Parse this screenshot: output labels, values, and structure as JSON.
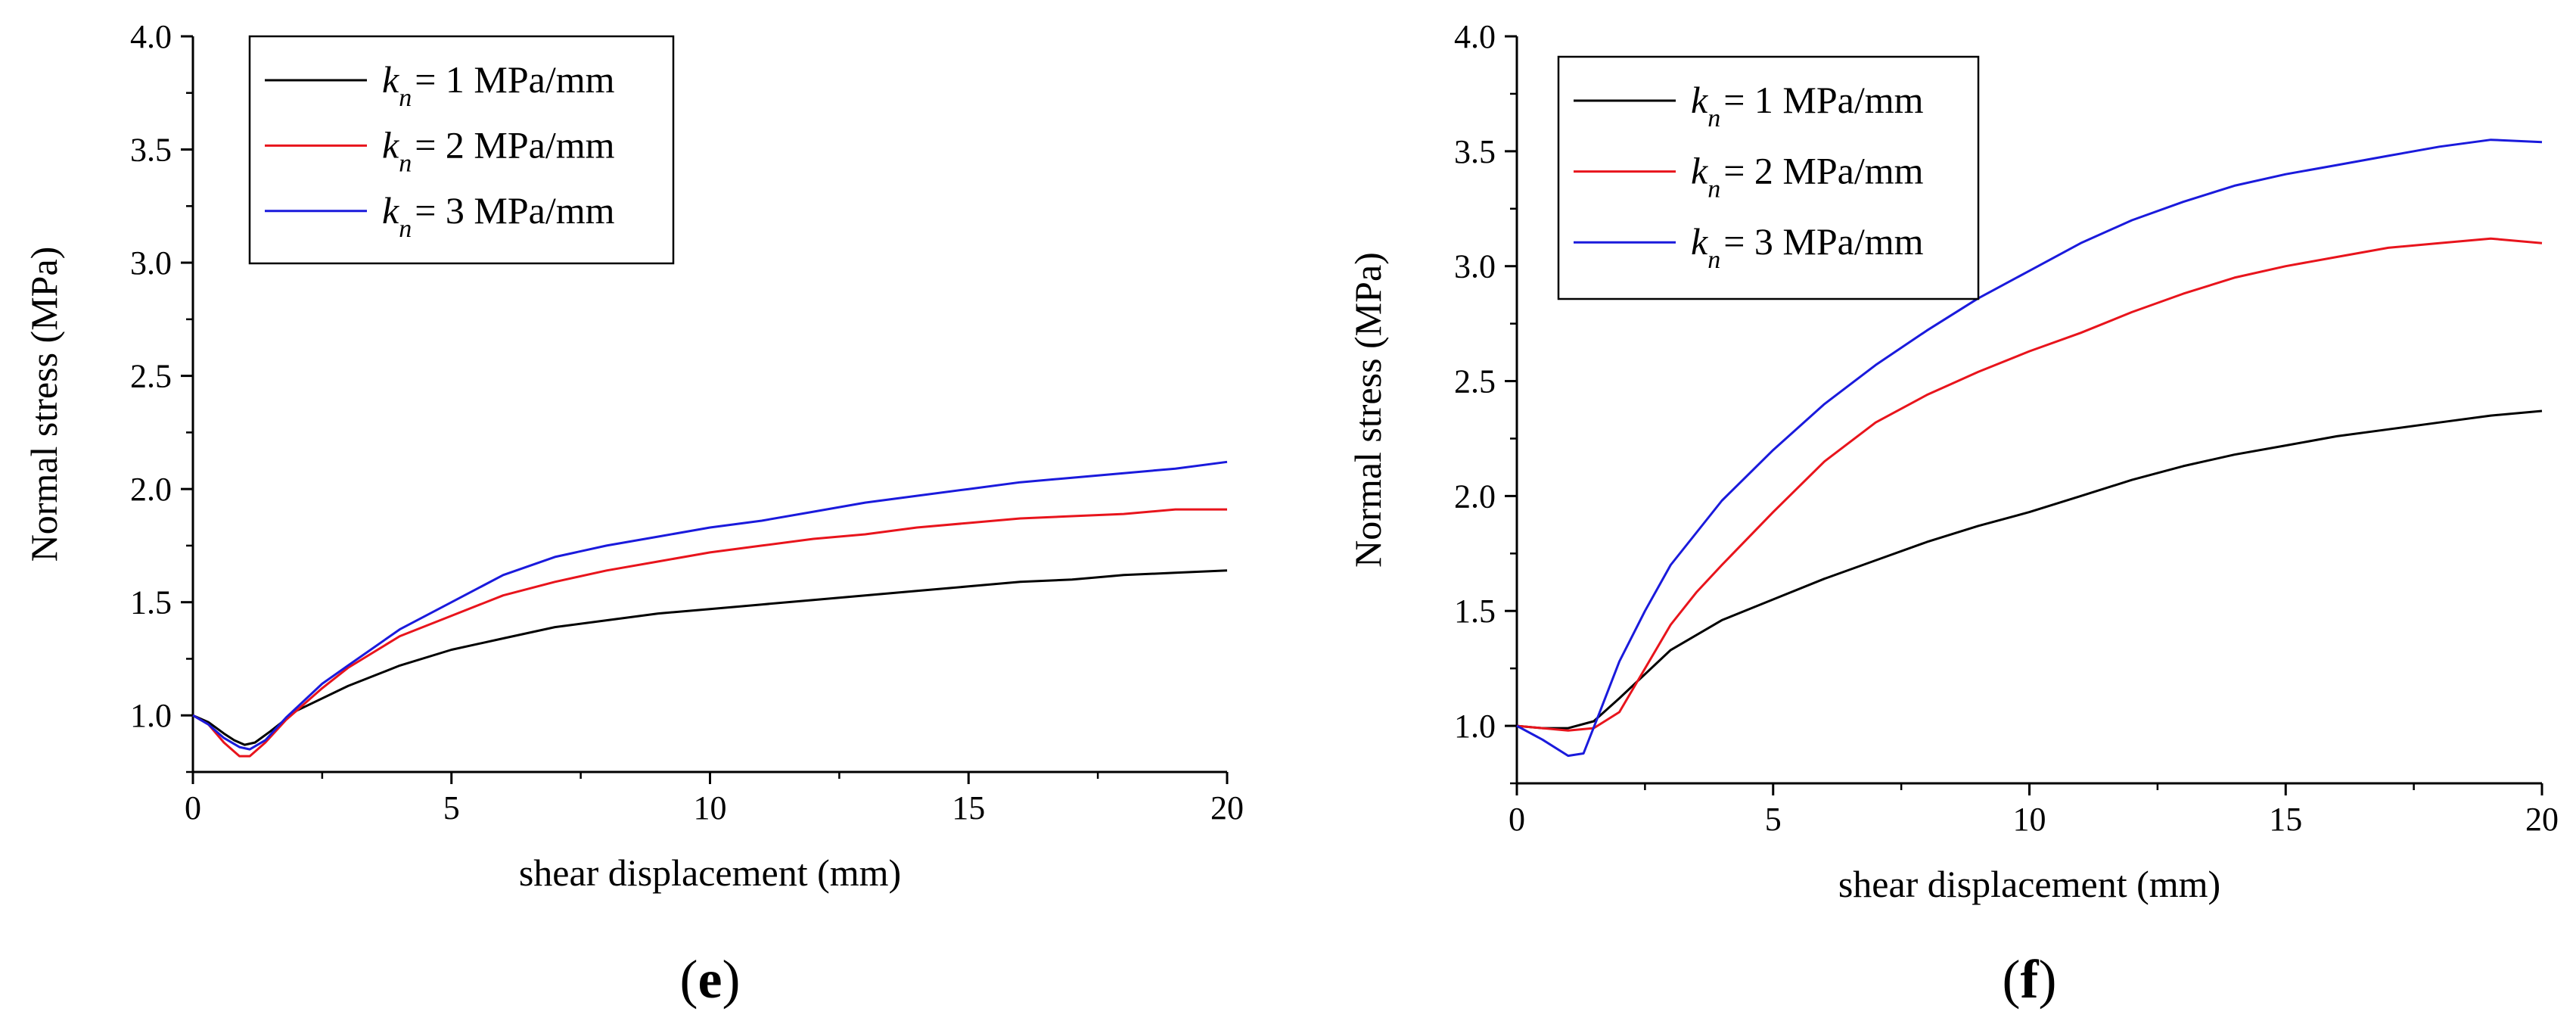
{
  "chart_data": [
    {
      "type": "line",
      "panel_label": "e",
      "xlabel": "shear displacement (mm)",
      "ylabel": "Normal stress (MPa)",
      "xlim": [
        0,
        20
      ],
      "ylim": [
        0.75,
        4.0
      ],
      "xticks": [
        0,
        5,
        10,
        15,
        20
      ],
      "yticks": [
        1.0,
        1.5,
        2.0,
        2.5,
        3.0,
        3.5,
        4.0
      ],
      "legend_position": "top-left",
      "series": [
        {
          "name": "k_n = 1 MPa/mm",
          "legend_k": "k",
          "legend_sub": "n",
          "legend_rest": "= 1 MPa/mm",
          "color": "#000000",
          "points": [
            [
              0,
              1.0
            ],
            [
              0.3,
              0.97
            ],
            [
              0.6,
              0.92
            ],
            [
              0.8,
              0.89
            ],
            [
              1.0,
              0.87
            ],
            [
              1.2,
              0.88
            ],
            [
              1.5,
              0.93
            ],
            [
              2,
              1.02
            ],
            [
              3,
              1.13
            ],
            [
              4,
              1.22
            ],
            [
              5,
              1.29
            ],
            [
              6,
              1.34
            ],
            [
              7,
              1.39
            ],
            [
              8,
              1.42
            ],
            [
              9,
              1.45
            ],
            [
              10,
              1.47
            ],
            [
              11,
              1.49
            ],
            [
              12,
              1.51
            ],
            [
              13,
              1.53
            ],
            [
              14,
              1.55
            ],
            [
              15,
              1.57
            ],
            [
              16,
              1.59
            ],
            [
              17,
              1.6
            ],
            [
              18,
              1.62
            ],
            [
              19,
              1.63
            ],
            [
              20,
              1.64
            ]
          ]
        },
        {
          "name": "k_n = 2 MPa/mm",
          "legend_k": "k",
          "legend_sub": "n",
          "legend_rest": "= 2 MPa/mm",
          "color": "#e8141c",
          "points": [
            [
              0,
              1.0
            ],
            [
              0.3,
              0.96
            ],
            [
              0.6,
              0.88
            ],
            [
              0.9,
              0.82
            ],
            [
              1.1,
              0.82
            ],
            [
              1.4,
              0.88
            ],
            [
              1.8,
              0.98
            ],
            [
              2.5,
              1.12
            ],
            [
              3,
              1.21
            ],
            [
              4,
              1.35
            ],
            [
              5,
              1.44
            ],
            [
              6,
              1.53
            ],
            [
              7,
              1.59
            ],
            [
              8,
              1.64
            ],
            [
              9,
              1.68
            ],
            [
              10,
              1.72
            ],
            [
              11,
              1.75
            ],
            [
              12,
              1.78
            ],
            [
              13,
              1.8
            ],
            [
              14,
              1.83
            ],
            [
              15,
              1.85
            ],
            [
              16,
              1.87
            ],
            [
              17,
              1.88
            ],
            [
              18,
              1.89
            ],
            [
              19,
              1.91
            ],
            [
              20,
              1.91
            ]
          ]
        },
        {
          "name": "k_n = 3 MPa/mm",
          "legend_k": "k",
          "legend_sub": "n",
          "legend_rest": "= 3 MPa/mm",
          "color": "#1a1adc",
          "points": [
            [
              0,
              1.0
            ],
            [
              0.3,
              0.96
            ],
            [
              0.6,
              0.9
            ],
            [
              0.9,
              0.86
            ],
            [
              1.1,
              0.85
            ],
            [
              1.4,
              0.89
            ],
            [
              1.8,
              0.99
            ],
            [
              2.5,
              1.14
            ],
            [
              3,
              1.22
            ],
            [
              4,
              1.38
            ],
            [
              5,
              1.5
            ],
            [
              6,
              1.62
            ],
            [
              7,
              1.7
            ],
            [
              8,
              1.75
            ],
            [
              9,
              1.79
            ],
            [
              10,
              1.83
            ],
            [
              11,
              1.86
            ],
            [
              12,
              1.9
            ],
            [
              13,
              1.94
            ],
            [
              14,
              1.97
            ],
            [
              15,
              2.0
            ],
            [
              16,
              2.03
            ],
            [
              17,
              2.05
            ],
            [
              18,
              2.07
            ],
            [
              19,
              2.09
            ],
            [
              20,
              2.12
            ]
          ]
        }
      ]
    },
    {
      "type": "line",
      "panel_label": "f",
      "xlabel": "shear displacement (mm)",
      "ylabel": "Normal stress (MPa)",
      "xlim": [
        0,
        20
      ],
      "ylim": [
        0.75,
        4.0
      ],
      "xticks": [
        0,
        5,
        10,
        15,
        20
      ],
      "yticks": [
        1.0,
        1.5,
        2.0,
        2.5,
        3.0,
        3.5,
        4.0
      ],
      "legend_position": "top-left",
      "series": [
        {
          "name": "k_n = 1 MPa/mm",
          "legend_k": "k",
          "legend_sub": "n",
          "legend_rest": "= 1 MPa/mm",
          "color": "#000000",
          "points": [
            [
              0,
              1.0
            ],
            [
              0.5,
              0.99
            ],
            [
              1.0,
              0.99
            ],
            [
              1.5,
              1.02
            ],
            [
              2,
              1.12
            ],
            [
              3,
              1.33
            ],
            [
              4,
              1.46
            ],
            [
              5,
              1.55
            ],
            [
              6,
              1.64
            ],
            [
              7,
              1.72
            ],
            [
              8,
              1.8
            ],
            [
              9,
              1.87
            ],
            [
              10,
              1.93
            ],
            [
              11,
              2.0
            ],
            [
              12,
              2.07
            ],
            [
              13,
              2.13
            ],
            [
              14,
              2.18
            ],
            [
              15,
              2.22
            ],
            [
              16,
              2.26
            ],
            [
              17,
              2.29
            ],
            [
              18,
              2.32
            ],
            [
              19,
              2.35
            ],
            [
              20,
              2.37
            ]
          ]
        },
        {
          "name": "k_n = 2 MPa/mm",
          "legend_k": "k",
          "legend_sub": "n",
          "legend_rest": "= 2 MPa/mm",
          "color": "#e8141c",
          "points": [
            [
              0,
              1.0
            ],
            [
              0.5,
              0.99
            ],
            [
              1.0,
              0.98
            ],
            [
              1.5,
              0.99
            ],
            [
              2,
              1.06
            ],
            [
              2.5,
              1.25
            ],
            [
              3,
              1.44
            ],
            [
              3.5,
              1.58
            ],
            [
              4,
              1.7
            ],
            [
              5,
              1.93
            ],
            [
              6,
              2.15
            ],
            [
              7,
              2.32
            ],
            [
              8,
              2.44
            ],
            [
              9,
              2.54
            ],
            [
              10,
              2.63
            ],
            [
              11,
              2.71
            ],
            [
              12,
              2.8
            ],
            [
              13,
              2.88
            ],
            [
              14,
              2.95
            ],
            [
              15,
              3.0
            ],
            [
              16,
              3.04
            ],
            [
              17,
              3.08
            ],
            [
              18,
              3.1
            ],
            [
              19,
              3.12
            ],
            [
              20,
              3.1
            ]
          ]
        },
        {
          "name": "k_n = 3 MPa/mm",
          "legend_k": "k",
          "legend_sub": "n",
          "legend_rest": "= 3 MPa/mm",
          "color": "#1a1adc",
          "points": [
            [
              0,
              1.0
            ],
            [
              0.5,
              0.94
            ],
            [
              1.0,
              0.87
            ],
            [
              1.3,
              0.88
            ],
            [
              1.6,
              1.05
            ],
            [
              2,
              1.28
            ],
            [
              2.5,
              1.5
            ],
            [
              3,
              1.7
            ],
            [
              4,
              1.98
            ],
            [
              5,
              2.2
            ],
            [
              6,
              2.4
            ],
            [
              7,
              2.57
            ],
            [
              8,
              2.72
            ],
            [
              9,
              2.86
            ],
            [
              10,
              2.98
            ],
            [
              11,
              3.1
            ],
            [
              12,
              3.2
            ],
            [
              13,
              3.28
            ],
            [
              14,
              3.35
            ],
            [
              15,
              3.4
            ],
            [
              16,
              3.44
            ],
            [
              17,
              3.48
            ],
            [
              18,
              3.52
            ],
            [
              19,
              3.55
            ],
            [
              20,
              3.54
            ]
          ]
        }
      ]
    }
  ]
}
